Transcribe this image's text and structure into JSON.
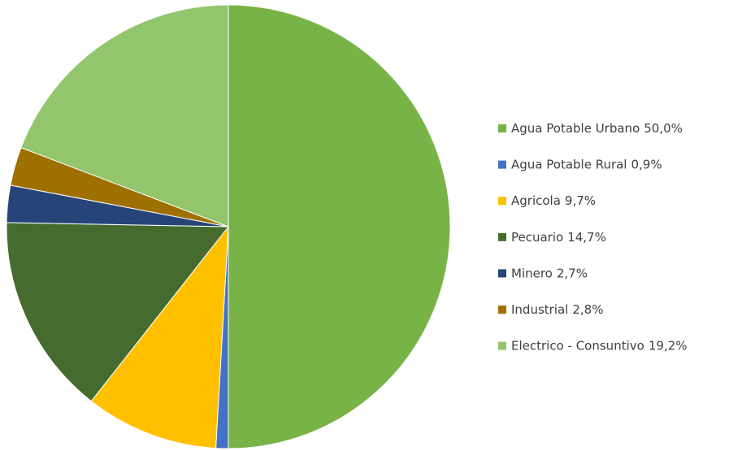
{
  "chart_data": {
    "type": "pie",
    "categories": [
      "Agua Potable Urbano",
      "Agua Potable Rural",
      "Agricola",
      "Pecuario",
      "Minero",
      "Industrial",
      "Electrico - Consuntivo"
    ],
    "values": [
      50.0,
      0.9,
      9.7,
      14.7,
      2.7,
      2.8,
      19.2
    ],
    "value_labels": [
      "50,0%",
      "0,9%",
      "9,7%",
      "14,7%",
      "2,7%",
      "2,8%",
      "19,2%"
    ],
    "colors": [
      "#78b347",
      "#4472c4",
      "#ffc000",
      "#456b2e",
      "#264478",
      "#9e7000",
      "#92c56c"
    ],
    "legend": "right"
  }
}
